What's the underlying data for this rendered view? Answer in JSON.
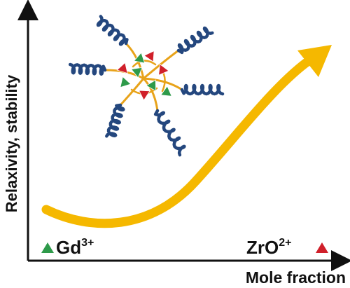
{
  "axes": {
    "y_label": "Relaxivity, stability",
    "x_label": "Mole fraction"
  },
  "labels": {
    "left": {
      "base": "Gd",
      "sup": "3+",
      "marker_color": "#2e9a4a"
    },
    "right": {
      "base": "ZrO",
      "sup": "2+",
      "marker_color": "#d0202a"
    }
  },
  "colors": {
    "arrow": "#f5b800",
    "axis": "#111111",
    "polymer_chain": "#24477e",
    "linker": "#e8a31a",
    "green_triangle": "#2e9a4a",
    "red_triangle": "#d0202a"
  },
  "illustration": {
    "name": "polymer-micelle",
    "green_triangles": 5,
    "red_triangles": 4,
    "polymer_arms": 6
  },
  "trend": {
    "direction": "increasing",
    "curve": "upward-concave arrow"
  }
}
